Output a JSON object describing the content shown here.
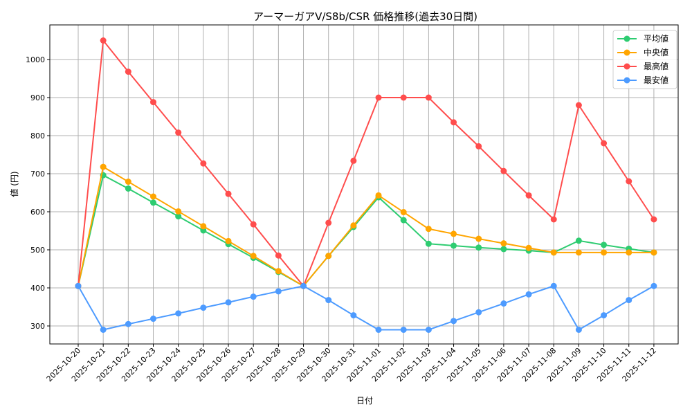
{
  "chart_data": {
    "type": "line",
    "title": "アーマーガアV/S8b/CSR 価格推移(過去30日間)",
    "xlabel": "日付",
    "ylabel": "値 (円)",
    "ylim": [
      250,
      1085
    ],
    "yticks": [
      300,
      400,
      500,
      600,
      700,
      800,
      900,
      1000
    ],
    "grid": true,
    "legend_position": "upper right",
    "x": [
      "2025-10-20",
      "2025-10-21",
      "2025-10-22",
      "2025-10-23",
      "2025-10-24",
      "2025-10-25",
      "2025-10-26",
      "2025-10-27",
      "2025-10-28",
      "2025-10-29",
      "2025-10-30",
      "2025-10-31",
      "2025-11-01",
      "2025-11-02",
      "2025-11-03",
      "2025-11-04",
      "2025-11-05",
      "2025-11-06",
      "2025-11-07",
      "2025-11-08",
      "2025-11-09",
      "2025-11-10",
      "2025-11-11",
      "2025-11-12"
    ],
    "series": [
      {
        "name": "平均値",
        "color": "#2ecc71",
        "values": [
          405,
          696,
          661,
          624,
          588,
          551,
          515,
          479,
          442,
          405,
          484,
          560,
          638,
          578,
          516,
          511,
          506,
          502,
          498,
          493,
          524,
          513,
          503,
          493
        ]
      },
      {
        "name": "中央値",
        "color": "#ffa500",
        "values": [
          405,
          718,
          679,
          640,
          601,
          562,
          523,
          484,
          444,
          405,
          484,
          564,
          643,
          599,
          555,
          542,
          529,
          517,
          505,
          493,
          493,
          493,
          493,
          493
        ]
      },
      {
        "name": "最高値",
        "color": "#ff4d4d",
        "values": [
          405,
          1050,
          968,
          888,
          808,
          727,
          647,
          567,
          485,
          405,
          571,
          734,
          900,
          900,
          900,
          835,
          772,
          707,
          643,
          580,
          880,
          780,
          680,
          580
        ]
      },
      {
        "name": "最安値",
        "color": "#4d9bff",
        "values": [
          405,
          290,
          305,
          319,
          333,
          348,
          362,
          377,
          391,
          405,
          368,
          328,
          290,
          290,
          290,
          313,
          336,
          359,
          383,
          405,
          290,
          328,
          368,
          405
        ]
      }
    ]
  }
}
